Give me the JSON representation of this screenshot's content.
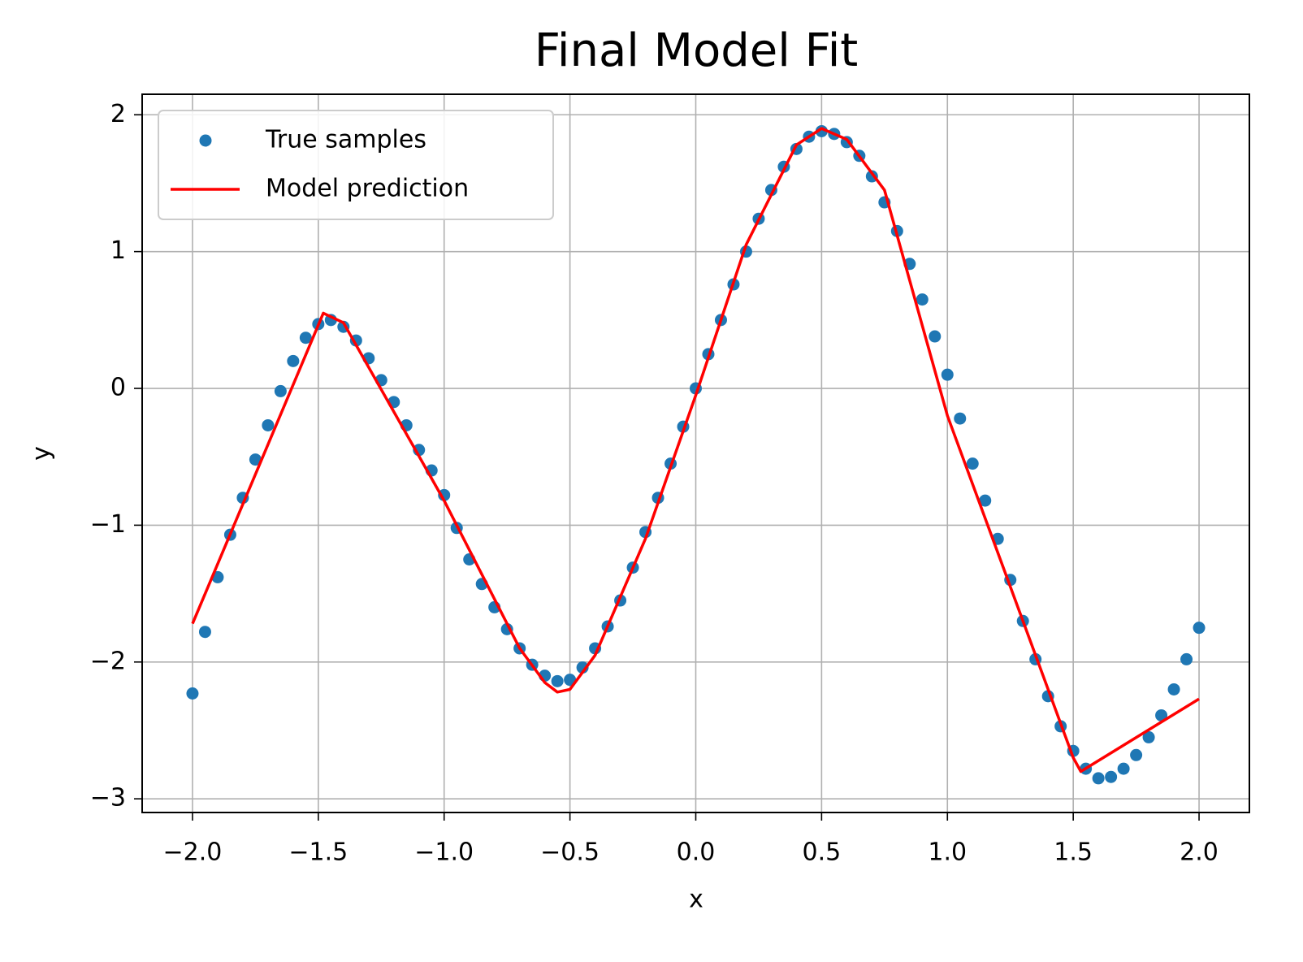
{
  "chart_data": {
    "type": "scatter",
    "title": "Final Model Fit",
    "x_label": "x",
    "y_label": "y",
    "xlim": [
      -2.2,
      2.2
    ],
    "ylim": [
      -3.1,
      2.15
    ],
    "xticks": [
      {
        "value": -2,
        "label": "−2.0"
      },
      {
        "value": -1.5,
        "label": "−1.5"
      },
      {
        "value": -1,
        "label": "−1.0"
      },
      {
        "value": -0.5,
        "label": "−0.5"
      },
      {
        "value": 0,
        "label": "0.0"
      },
      {
        "value": 0.5,
        "label": "0.5"
      },
      {
        "value": 1,
        "label": "1.0"
      },
      {
        "value": 1.5,
        "label": "1.5"
      },
      {
        "value": 2,
        "label": "2.0"
      }
    ],
    "yticks": [
      {
        "value": -3,
        "label": "−3"
      },
      {
        "value": -2,
        "label": "−2"
      },
      {
        "value": -1,
        "label": "−1"
      },
      0,
      1,
      2
    ],
    "grid": true,
    "legend": "upper-left",
    "series": [
      {
        "name": "True samples",
        "type": "scatter",
        "color": "#1f77b4",
        "x": [
          -2.0,
          -1.95,
          -1.9,
          -1.85,
          -1.8,
          -1.75,
          -1.7,
          -1.65,
          -1.6,
          -1.55,
          -1.5,
          -1.45,
          -1.4,
          -1.35,
          -1.3,
          -1.25,
          -1.2,
          -1.15,
          -1.1,
          -1.05,
          -1.0,
          -0.95,
          -0.9,
          -0.85,
          -0.8,
          -0.75,
          -0.7,
          -0.65,
          -0.6,
          -0.55,
          -0.5,
          -0.45,
          -0.4,
          -0.35,
          -0.3,
          -0.25,
          -0.2,
          -0.15,
          -0.1,
          -0.05,
          0.0,
          0.05,
          0.1,
          0.15,
          0.2,
          0.25,
          0.3,
          0.35,
          0.4,
          0.45,
          0.5,
          0.55,
          0.6,
          0.65,
          0.7,
          0.75,
          0.8,
          0.85,
          0.9,
          0.95,
          1.0,
          1.05,
          1.1,
          1.15,
          1.2,
          1.25,
          1.3,
          1.35,
          1.4,
          1.45,
          1.5,
          1.55,
          1.6,
          1.65,
          1.7,
          1.75,
          1.8,
          1.85,
          1.9,
          1.95,
          2.0
        ],
        "values": [
          -2.23,
          -1.78,
          -1.38,
          -1.07,
          -0.8,
          -0.52,
          -0.27,
          -0.02,
          0.2,
          0.37,
          0.47,
          0.5,
          0.45,
          0.35,
          0.22,
          0.06,
          -0.1,
          -0.27,
          -0.45,
          -0.6,
          -0.78,
          -1.02,
          -1.25,
          -1.43,
          -1.6,
          -1.76,
          -1.9,
          -2.02,
          -2.1,
          -2.14,
          -2.13,
          -2.04,
          -1.9,
          -1.74,
          -1.55,
          -1.31,
          -1.05,
          -0.8,
          -0.55,
          -0.28,
          0.0,
          0.25,
          0.5,
          0.76,
          1.0,
          1.24,
          1.45,
          1.62,
          1.75,
          1.84,
          1.88,
          1.86,
          1.8,
          1.7,
          1.55,
          1.36,
          1.15,
          0.91,
          0.65,
          0.38,
          0.1,
          -0.22,
          -0.55,
          -0.82,
          -1.1,
          -1.4,
          -1.7,
          -1.98,
          -2.25,
          -2.47,
          -2.65,
          -2.78,
          -2.85,
          -2.84,
          -2.78,
          -2.68,
          -2.55,
          -2.39,
          -2.2,
          -1.98,
          -1.75
        ]
      },
      {
        "name": "Model prediction",
        "type": "line",
        "color": "#ff0000",
        "x": [
          -2.0,
          -1.48,
          -1.4,
          -1.0,
          -0.7,
          -0.6,
          -0.55,
          -0.5,
          -0.4,
          -0.2,
          0.0,
          0.2,
          0.4,
          0.5,
          0.6,
          0.75,
          1.0,
          1.5,
          1.53,
          2.0
        ],
        "values": [
          -1.72,
          0.55,
          0.48,
          -0.82,
          -1.9,
          -2.15,
          -2.22,
          -2.2,
          -1.95,
          -1.1,
          -0.05,
          1.05,
          1.78,
          1.9,
          1.82,
          1.45,
          -0.2,
          -2.7,
          -2.8,
          -2.27
        ]
      }
    ]
  }
}
